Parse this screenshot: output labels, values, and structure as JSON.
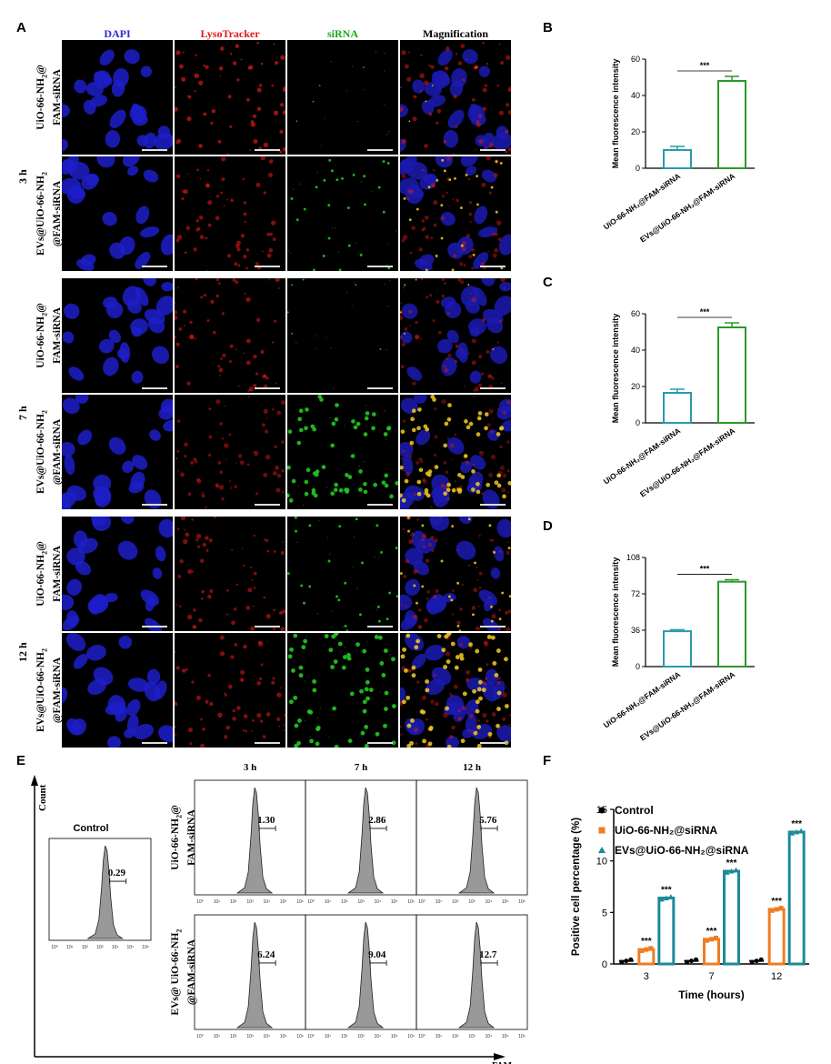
{
  "panels": {
    "A": "A",
    "B": "B",
    "C": "C",
    "D": "D",
    "E": "E",
    "F": "F"
  },
  "micro": {
    "columns": [
      {
        "label": "DAPI",
        "color": "#2a2ad8"
      },
      {
        "label": "LysoTracker",
        "color": "#e01818"
      },
      {
        "label": "siRNA",
        "color": "#18a818"
      },
      {
        "label": "Magnification",
        "color": "#000000"
      }
    ],
    "times": [
      "3 h",
      "7 h",
      "12 h"
    ],
    "rows": [
      {
        "line1": "UiO-66-NH",
        "line1_sub": "2",
        "line1_tail": "@",
        "line2": "FAM-siRNA"
      },
      {
        "line1": "EVs@UiO-66-NH",
        "line1_sub": "2",
        "line1_tail": "",
        "line2": "@FAM-siRNA"
      },
      {
        "line1": "UiO-66-NH",
        "line1_sub": "2",
        "line1_tail": "@",
        "line2": "FAM-siRNA"
      },
      {
        "line1": "EVs@UiO-66-NH",
        "line1_sub": "2",
        "line1_tail": "",
        "line2": "@FAM-siRNA"
      },
      {
        "line1": "UiO-66-NH",
        "line1_sub": "2",
        "line1_tail": "@",
        "line2": "FAM-siRNA"
      },
      {
        "line1": "EVs@UiO-66-NH",
        "line1_sub": "2",
        "line1_tail": "",
        "line2": "@FAM-siRNA"
      }
    ],
    "green_level": [
      0.05,
      0.35,
      0.08,
      0.85,
      0.35,
      0.9
    ],
    "red_level": [
      0.7,
      0.6,
      0.6,
      0.5,
      0.6,
      0.6
    ]
  },
  "chart_data": [
    {
      "type": "bar",
      "panel": "B",
      "title": "",
      "ylabel": "Mean fluorescence intensity",
      "ylim": [
        0,
        60
      ],
      "yticks": [
        0,
        20,
        40,
        60
      ],
      "categories": [
        "UiO-66-NH₂@FAM-siRNA",
        "EVs@UiO-66-NH₂@FAM-siRNA"
      ],
      "values": [
        10,
        48
      ],
      "errors": [
        2,
        2.5
      ],
      "colors": [
        "#2a9aa8",
        "#2a9a2a"
      ],
      "significance": "***"
    },
    {
      "type": "bar",
      "panel": "C",
      "title": "",
      "ylabel": "Mean fluorescence intensity",
      "ylim": [
        0,
        60
      ],
      "yticks": [
        0,
        20,
        40,
        60
      ],
      "categories": [
        "UiO-66-NH₂@FAM-siRNA",
        "EVs@UiO-66-NH₂@FAM-siRNA"
      ],
      "values": [
        16.5,
        52.5
      ],
      "errors": [
        2,
        2.5
      ],
      "colors": [
        "#2a9aa8",
        "#2a9a2a"
      ],
      "significance": "***"
    },
    {
      "type": "bar",
      "panel": "D",
      "title": "",
      "ylabel": "Mean fluorescence intensity",
      "ylim": [
        0,
        108
      ],
      "yticks": [
        0,
        36,
        72,
        108
      ],
      "categories": [
        "UiO-66-NH₂@FAM-siRNA",
        "EVs@UiO-66-NH₂@FAM-siRNA"
      ],
      "values": [
        35,
        84
      ],
      "errors": [
        1.5,
        2
      ],
      "colors": [
        "#2a9aa8",
        "#2a9a2a"
      ],
      "significance": "***"
    },
    {
      "type": "bar",
      "panel": "F",
      "title": "",
      "xlabel": "Time (hours)",
      "ylabel": "Positive cell percentage (%)",
      "ylim": [
        0,
        15
      ],
      "yticks": [
        0,
        5,
        10,
        15
      ],
      "categories": [
        "3",
        "7",
        "12"
      ],
      "series": [
        {
          "name": "Control",
          "values": [
            0.3,
            0.3,
            0.3
          ],
          "color": "#000000",
          "marker": "circle"
        },
        {
          "name": "UiO-66-NH₂@siRNA",
          "values": [
            1.4,
            2.4,
            5.3
          ],
          "color": "#f07c22",
          "marker": "square"
        },
        {
          "name": "EVs@UiO-66-NH₂@siRNA",
          "values": [
            6.4,
            9.0,
            12.8
          ],
          "color": "#1c8a9a",
          "marker": "triangle"
        }
      ],
      "significance": [
        [
          "",
          "***",
          "***"
        ],
        [
          "",
          "***",
          "***"
        ],
        [
          "",
          "***",
          "***"
        ]
      ]
    }
  ],
  "flow": {
    "ylabel": "Count",
    "xlabel": "FAM",
    "control": {
      "title": "Control",
      "value": "0.29"
    },
    "times": [
      "3 h",
      "7 h",
      "12 h"
    ],
    "rows": [
      {
        "line1": "UiO-66-NH",
        "line1_sub": "2",
        "line1_tail": "@",
        "line2": "FAM-siRNA",
        "values": [
          "1.30",
          "2.86",
          "5.76"
        ]
      },
      {
        "line1": "EVs@ UiO-66-NH",
        "line1_sub": "2",
        "line1_tail": "",
        "line2": "@FAM-siRNA",
        "values": [
          "6.24",
          "9.04",
          "12.7"
        ]
      }
    ],
    "xticks": [
      "10⁰",
      "10¹",
      "10²",
      "10³",
      "10⁴",
      "10⁵",
      "10⁶"
    ]
  }
}
